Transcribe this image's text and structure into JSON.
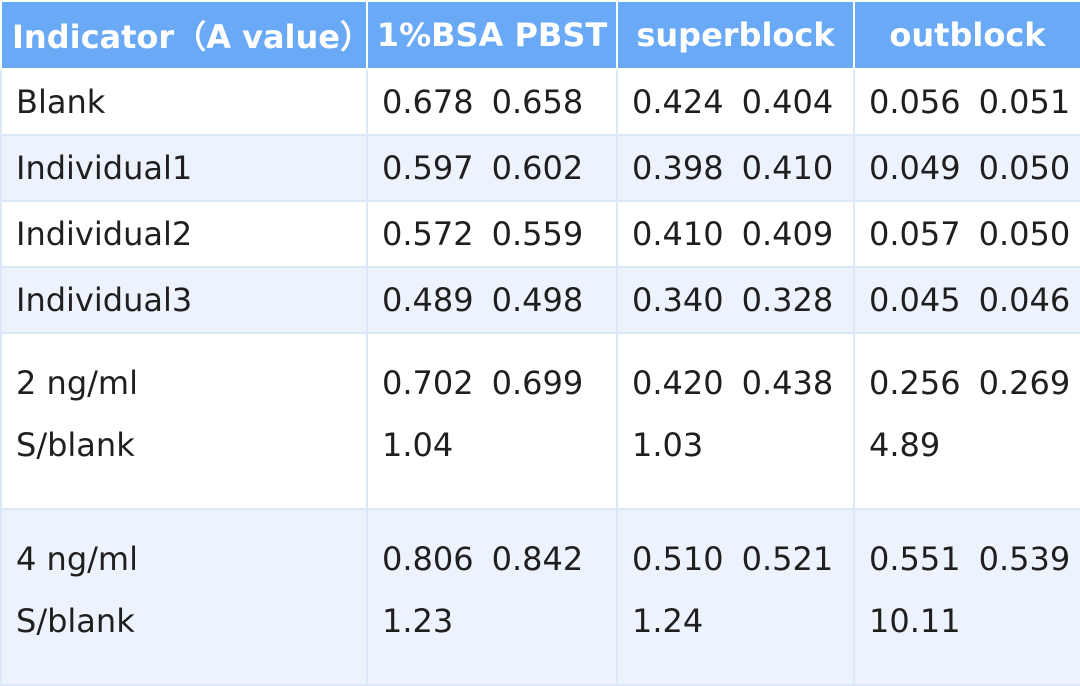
{
  "table": {
    "headers": [
      "Indicator（A value）",
      "1%BSA PBST",
      "superblock",
      "outblock"
    ],
    "rows": [
      {
        "label": "Blank",
        "cells": [
          {
            "v1": "0.678",
            "v2": "0.658"
          },
          {
            "v1": "0.424",
            "v2": "0.404"
          },
          {
            "v1": "0.056",
            "v2": "0.051"
          }
        ]
      },
      {
        "label": "Individual1",
        "cells": [
          {
            "v1": "0.597",
            "v2": "0.602"
          },
          {
            "v1": "0.398",
            "v2": "0.410"
          },
          {
            "v1": "0.049",
            "v2": "0.050"
          }
        ]
      },
      {
        "label": "Individual2",
        "cells": [
          {
            "v1": "0.572",
            "v2": "0.559"
          },
          {
            "v1": "0.410",
            "v2": "0.409"
          },
          {
            "v1": "0.057",
            "v2": "0.050"
          }
        ]
      },
      {
        "label": "Individual3",
        "cells": [
          {
            "v1": "0.489",
            "v2": "0.498"
          },
          {
            "v1": "0.340",
            "v2": "0.328"
          },
          {
            "v1": "0.045",
            "v2": "0.046"
          }
        ]
      },
      {
        "label": "2 ng/ml",
        "sublabel": "S/blank",
        "cells": [
          {
            "v1": "0.702",
            "v2": "0.699",
            "ratio": "1.04"
          },
          {
            "v1": "0.420",
            "v2": "0.438",
            "ratio": "1.03"
          },
          {
            "v1": "0.256",
            "v2": "0.269",
            "ratio": "4.89"
          }
        ]
      },
      {
        "label": "4 ng/ml",
        "sublabel": "S/blank",
        "cells": [
          {
            "v1": "0.806",
            "v2": "0.842",
            "ratio": "1.23"
          },
          {
            "v1": "0.510",
            "v2": "0.521",
            "ratio": "1.24"
          },
          {
            "v1": "0.551",
            "v2": "0.539",
            "ratio": "10.11"
          }
        ]
      }
    ]
  },
  "colors": {
    "header_bg": "#6aa9f5",
    "header_text": "#ffffff",
    "row_alt_bg": "#ecf3fd",
    "row_bg": "#ffffff",
    "grid_line": "#dce8f7"
  }
}
